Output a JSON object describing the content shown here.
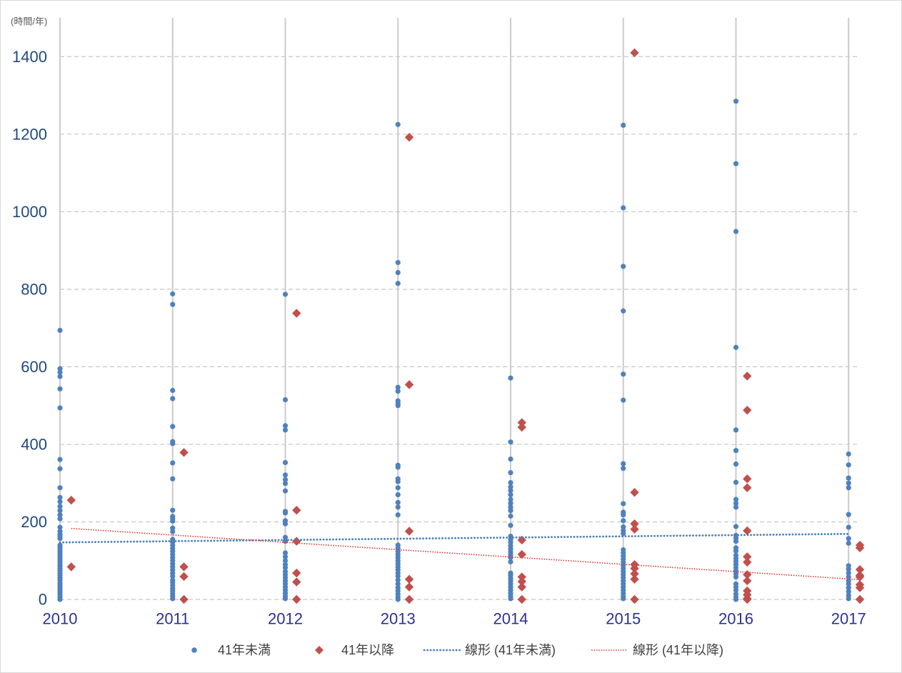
{
  "chart_data": {
    "type": "scatter",
    "ylabel": "(時間/年)",
    "xlim": [
      2010,
      2017.1
    ],
    "ylim": [
      0,
      1500
    ],
    "x_ticks": [
      2010,
      2011,
      2012,
      2013,
      2014,
      2015,
      2016,
      2017
    ],
    "y_ticks": [
      0,
      200,
      400,
      600,
      800,
      1000,
      1200,
      1400
    ],
    "grid": {
      "x": true,
      "y": true
    },
    "legend": "bottom",
    "series": [
      {
        "name": "41年未満",
        "marker": "circle",
        "color": "#4F81BD",
        "groups": [
          {
            "x": 2010,
            "y": [
              694,
              595,
              586,
              575,
              543,
              494,
              361,
              337,
              288,
              263,
              252,
              240,
              229,
              218,
              208,
              186,
              176,
              168,
              163,
              157,
              140,
              134,
              128,
              122,
              116,
              110,
              104,
              98,
              92,
              86,
              80,
              74,
              68,
              62,
              56,
              50,
              42,
              36,
              30,
              24,
              18,
              12,
              6,
              0
            ]
          },
          {
            "x": 2011,
            "y": [
              788,
              761,
              539,
              518,
              446,
              407,
              402,
              352,
              311,
              230,
              214,
              208,
              202,
              184,
              175,
              155,
              148,
              140,
              132,
              124,
              116,
              108,
              100,
              92,
              84,
              76,
              68,
              60,
              50,
              44,
              36,
              28,
              22,
              15,
              8,
              2
            ]
          },
          {
            "x": 2012,
            "y": [
              787,
              515,
              448,
              437,
              353,
              321,
              309,
              299,
              280,
              227,
              223,
              203,
              195,
              160,
              150,
              120,
              110,
              100,
              90,
              82,
              72,
              64,
              56,
              48,
              40,
              32,
              24,
              16,
              8,
              2
            ]
          },
          {
            "x": 2013,
            "y": [
              1225,
              869,
              843,
              815,
              547,
              537,
              512,
              506,
              500,
              346,
              341,
              311,
              304,
              288,
              270,
              250,
              238,
              218,
              140,
              132,
              124,
              116,
              108,
              100,
              92,
              84,
              76,
              68,
              60,
              50,
              40,
              30,
              22,
              14,
              6,
              0
            ]
          },
          {
            "x": 2014,
            "y": [
              571,
              406,
              362,
              327,
              301,
              290,
              281,
              270,
              258,
              248,
              238,
              229,
              215,
              191,
              163,
              155,
              147,
              138,
              130,
              122,
              115,
              108,
              97,
              68,
              62,
              54,
              48,
              40,
              32,
              24,
              16,
              8,
              2
            ]
          },
          {
            "x": 2015,
            "y": [
              1223,
              1010,
              859,
              744,
              581,
              514,
              350,
              338,
              247,
              225,
              218,
              203,
              187,
              178,
              170,
              128,
              120,
              112,
              104,
              96,
              88,
              80,
              72,
              64,
              56,
              48,
              40,
              32,
              24,
              16,
              8,
              2
            ]
          },
          {
            "x": 2016,
            "y": [
              1285,
              1124,
              949,
              650,
              437,
              384,
              349,
              302,
              258,
              248,
              238,
              188,
              165,
              158,
              150,
              133,
              125,
              114,
              106,
              98,
              90,
              82,
              74,
              66,
              58,
              40,
              32,
              24,
              14,
              6,
              0
            ]
          },
          {
            "x": 2017,
            "y": [
              375,
              347,
              313,
              300,
              288,
              219,
              186,
              157,
              145,
              87,
              78,
              68,
              58,
              48,
              40,
              30,
              20,
              10,
              2
            ]
          }
        ]
      },
      {
        "name": "41年以降",
        "marker": "diamond",
        "color": "#C0504D",
        "groups": [
          {
            "x": 2010.1,
            "y": [
              256,
              84
            ]
          },
          {
            "x": 2011.1,
            "y": [
              379,
              84,
              59,
              0
            ]
          },
          {
            "x": 2012.1,
            "y": [
              738,
              230,
              150,
              68,
              45,
              0
            ]
          },
          {
            "x": 2013.1,
            "y": [
              1192,
              554,
              176,
              52,
              32,
              0
            ]
          },
          {
            "x": 2014.1,
            "y": [
              456,
              444,
              153,
              116,
              58,
              46,
              32,
              0
            ]
          },
          {
            "x": 2015.1,
            "y": [
              1410,
              276,
              195,
              181,
              90,
              80,
              66,
              52,
              0
            ]
          },
          {
            "x": 2016.1,
            "y": [
              576,
              488,
              311,
              288,
              177,
              110,
              96,
              64,
              48,
              22,
              12,
              2,
              0
            ]
          },
          {
            "x": 2017.1,
            "y": [
              140,
              133,
              77,
              62,
              58,
              38,
              30,
              0
            ]
          }
        ]
      }
    ],
    "trendlines": [
      {
        "name": "線形 (41年未満)",
        "color": "#4A7EBB",
        "x": [
          2010,
          2017
        ],
        "y": [
          147,
          169
        ]
      },
      {
        "name": "線形 (41年以降)",
        "color": "#E03A3A",
        "x": [
          2010.1,
          2017.1
        ],
        "y": [
          183,
          51
        ]
      }
    ]
  }
}
